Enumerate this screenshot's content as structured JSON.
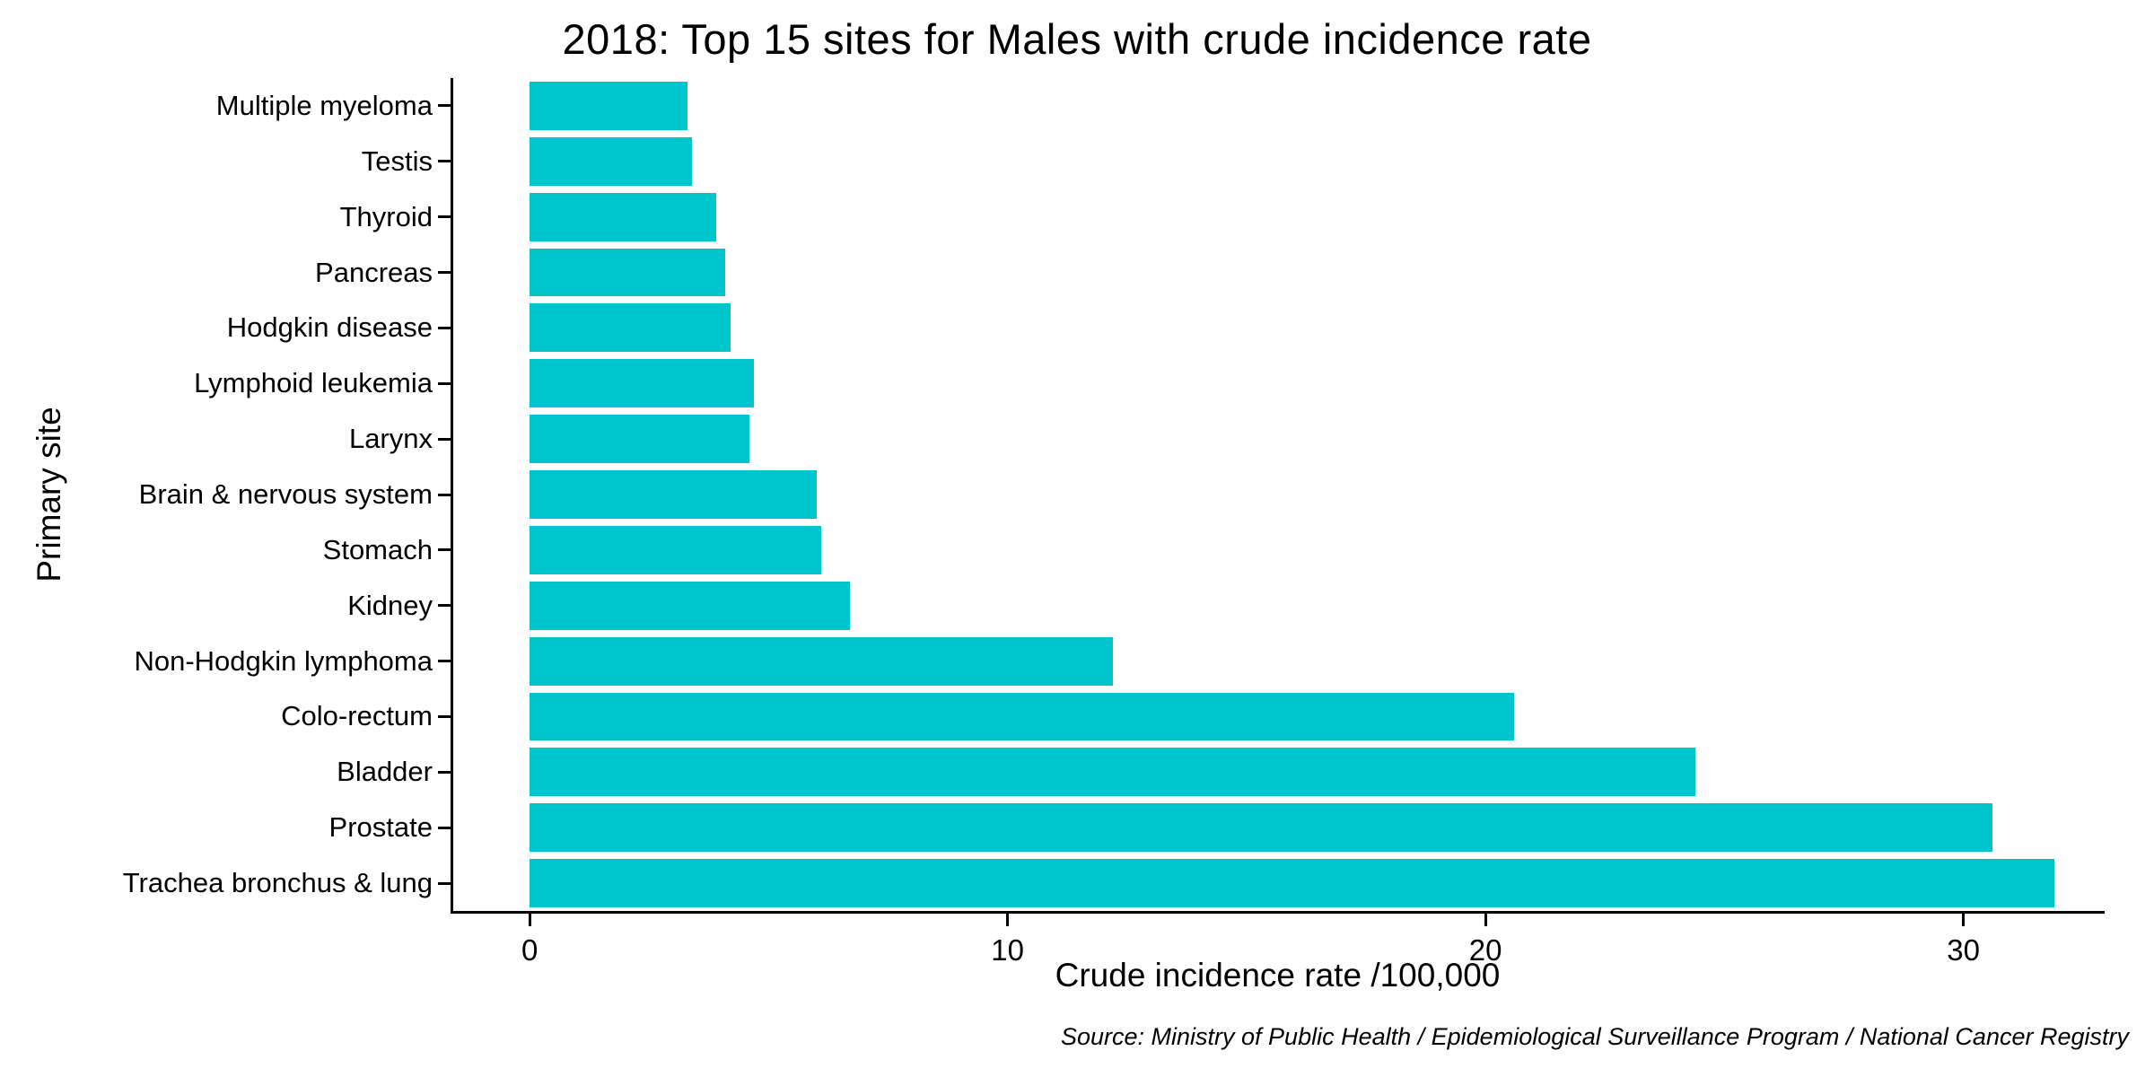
{
  "chart_data": {
    "type": "bar",
    "orientation": "horizontal",
    "title": "2018: Top 15 sites for Males with crude incidence rate",
    "xlabel": "Crude incidence rate /100,000",
    "ylabel": "Primary site",
    "source": "Source: Ministry of Public Health / Epidemiological Surveillance Program / National Cancer Registry",
    "categories_top_to_bottom": [
      "Multiple myeloma",
      "Testis",
      "Thyroid",
      "Pancreas",
      "Hodgkin disease",
      "Lymphoid leukemia",
      "Larynx",
      "Brain & nervous system",
      "Stomach",
      "Kidney",
      "Non-Hodgkin lymphoma",
      "Colo-rectum",
      "Bladder",
      "Prostate",
      "Trachea bronchus & lung"
    ],
    "values": [
      3.3,
      3.4,
      3.9,
      4.1,
      4.2,
      4.7,
      4.6,
      6.0,
      6.1,
      6.7,
      12.2,
      20.6,
      24.4,
      30.6,
      31.9
    ],
    "x_ticks": [
      0,
      10,
      20,
      30
    ],
    "xlim": [
      -1.6,
      32.9
    ],
    "bar_color": "#00c5cd",
    "axis_color": "#000000",
    "text_color": "#000000",
    "grid": false,
    "legend": false
  }
}
